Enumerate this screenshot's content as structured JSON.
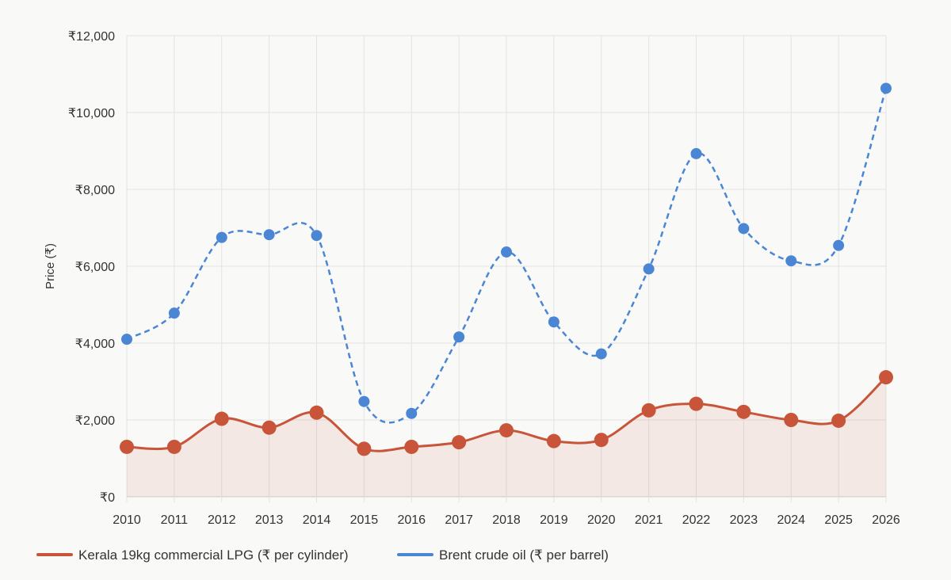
{
  "chart_data": {
    "type": "line",
    "ylabel": "Price (₹)",
    "xlabel": "",
    "ylim": [
      0,
      12000
    ],
    "y_ticks": [
      "₹0",
      "₹2,000",
      "₹4,000",
      "₹6,000",
      "₹8,000",
      "₹10,000",
      "₹12,000"
    ],
    "y_tick_values": [
      0,
      2000,
      4000,
      6000,
      8000,
      10000,
      12000
    ],
    "x": [
      "2010",
      "2011",
      "2012",
      "2013",
      "2014",
      "2015",
      "2016",
      "2017",
      "2018",
      "2019",
      "2020",
      "2021",
      "2022",
      "2023",
      "2024",
      "2025",
      "2026"
    ],
    "grid": true,
    "legend_position": "bottom",
    "series": [
      {
        "name": "Kerala 19kg commercial LPG (₹ per cylinder)",
        "color": "#c8553a",
        "style": "solid-filled",
        "values": [
          1300,
          1300,
          2030,
          1800,
          2190,
          1250,
          1300,
          1420,
          1730,
          1450,
          1480,
          2250,
          2420,
          2210,
          2000,
          1980,
          3110
        ]
      },
      {
        "name": "Brent crude oil (₹ per barrel)",
        "color": "#4a86d4",
        "style": "dashed",
        "values": [
          4100,
          4780,
          6750,
          6820,
          6800,
          2480,
          2170,
          4160,
          6370,
          4550,
          3720,
          5930,
          8930,
          6980,
          6140,
          6540,
          10630
        ]
      }
    ]
  }
}
